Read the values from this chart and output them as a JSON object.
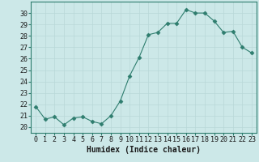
{
  "x": [
    0,
    1,
    2,
    3,
    4,
    5,
    6,
    7,
    8,
    9,
    10,
    11,
    12,
    13,
    14,
    15,
    16,
    17,
    18,
    19,
    20,
    21,
    22,
    23
  ],
  "y": [
    21.8,
    20.7,
    20.9,
    20.2,
    20.8,
    20.9,
    20.5,
    20.3,
    21.0,
    22.3,
    24.5,
    26.1,
    28.1,
    28.3,
    29.1,
    29.1,
    30.3,
    30.0,
    30.0,
    29.3,
    28.3,
    28.4,
    27.0,
    26.5
  ],
  "line_color": "#2e7d6e",
  "marker": "D",
  "marker_size": 2.5,
  "bg_color": "#cce8e8",
  "grid_color": "#b8d8d8",
  "xlabel": "Humidex (Indice chaleur)",
  "xlim": [
    -0.5,
    23.5
  ],
  "ylim": [
    19.5,
    31.0
  ],
  "yticks": [
    20,
    21,
    22,
    23,
    24,
    25,
    26,
    27,
    28,
    29,
    30
  ],
  "xticks": [
    0,
    1,
    2,
    3,
    4,
    5,
    6,
    7,
    8,
    9,
    10,
    11,
    12,
    13,
    14,
    15,
    16,
    17,
    18,
    19,
    20,
    21,
    22,
    23
  ],
  "tick_fontsize": 6,
  "xlabel_fontsize": 7,
  "spine_color": "#2e7d6e",
  "linewidth": 0.8
}
